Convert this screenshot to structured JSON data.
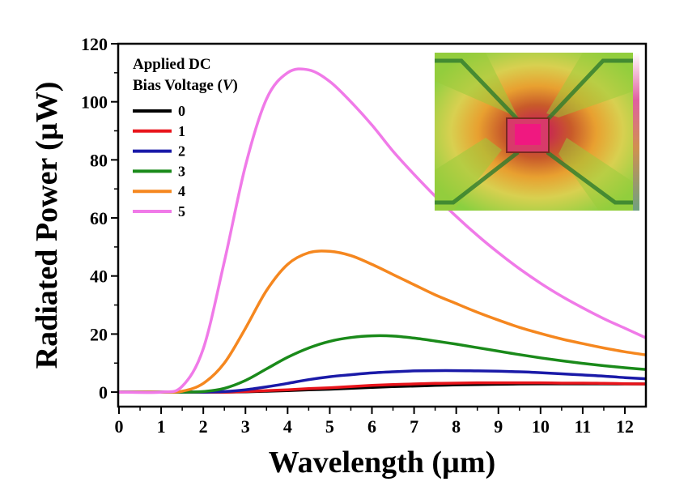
{
  "chart_data": {
    "type": "line",
    "title": "",
    "xlabel": "Wavelength (µm)",
    "ylabel": "Radiated Power (µW)",
    "xlim": [
      0,
      12.5
    ],
    "ylim": [
      -5,
      120
    ],
    "xticks": [
      0,
      1,
      2,
      3,
      4,
      5,
      6,
      7,
      8,
      9,
      10,
      11,
      12
    ],
    "yticks": [
      0,
      20,
      40,
      60,
      80,
      100,
      120
    ],
    "grid": false,
    "legend": {
      "title_line1": "Applied DC",
      "title_line2": "Bias Voltage (",
      "title_italic": "V",
      "title_close": ")",
      "placement": "top-left"
    },
    "inset": "infrared thermal image of device",
    "x": [
      0,
      1,
      1.5,
      2,
      2.5,
      3,
      3.5,
      4,
      4.5,
      5,
      5.5,
      6,
      6.5,
      7,
      7.5,
      8,
      8.5,
      9,
      9.5,
      10,
      10.5,
      11,
      11.5,
      12,
      12.5
    ],
    "series": [
      {
        "name": "0",
        "color": "#000000",
        "values": [
          0,
          0,
          0,
          0,
          0,
          0.1,
          0.3,
          0.5,
          0.8,
          1.0,
          1.3,
          1.6,
          1.9,
          2.1,
          2.3,
          2.5,
          2.6,
          2.7,
          2.8,
          2.85,
          2.85,
          2.85,
          2.85,
          2.8,
          2.8
        ]
      },
      {
        "name": "1",
        "color": "#e8141b",
        "values": [
          0,
          0,
          0,
          0,
          0,
          0.2,
          0.5,
          0.8,
          1.2,
          1.5,
          1.9,
          2.3,
          2.6,
          2.8,
          3.0,
          3.1,
          3.2,
          3.2,
          3.2,
          3.2,
          3.1,
          3.1,
          3.0,
          2.9,
          2.8
        ]
      },
      {
        "name": "2",
        "color": "#1a1aa8",
        "values": [
          0,
          0,
          0,
          0,
          0.2,
          0.8,
          1.8,
          3.0,
          4.3,
          5.3,
          6.0,
          6.6,
          7.0,
          7.3,
          7.4,
          7.4,
          7.3,
          7.2,
          7.0,
          6.7,
          6.3,
          5.9,
          5.5,
          5.0,
          4.6
        ]
      },
      {
        "name": "3",
        "color": "#1a8a1a",
        "values": [
          0,
          0,
          0,
          0.2,
          1.3,
          4.0,
          8.0,
          12.0,
          15.2,
          17.5,
          18.8,
          19.4,
          19.3,
          18.6,
          17.6,
          16.5,
          15.3,
          14.1,
          12.9,
          11.8,
          10.8,
          9.9,
          9.1,
          8.4,
          7.8
        ]
      },
      {
        "name": "4",
        "color": "#f5871f",
        "values": [
          0,
          0,
          0.3,
          3.0,
          10.0,
          22.0,
          35.0,
          44.0,
          48.0,
          48.5,
          47.0,
          44.0,
          40.5,
          37.0,
          33.5,
          30.5,
          27.5,
          24.8,
          22.3,
          20.2,
          18.3,
          16.7,
          15.2,
          13.9,
          12.8
        ]
      },
      {
        "name": "5",
        "color": "#f07ae8",
        "values": [
          0,
          0,
          2.0,
          15.0,
          45.0,
          78.0,
          101.0,
          110.0,
          111.0,
          107.0,
          100.0,
          92.0,
          83.0,
          75.0,
          67.5,
          60.5,
          54.0,
          48.0,
          42.5,
          37.5,
          33.0,
          29.0,
          25.3,
          22.0,
          18.7
        ]
      }
    ]
  }
}
